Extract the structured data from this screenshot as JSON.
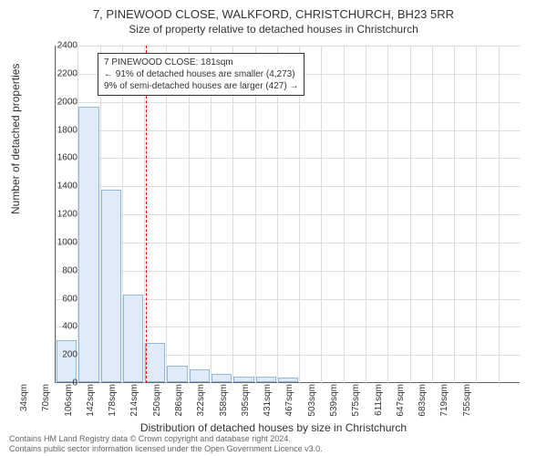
{
  "title_main": "7, PINEWOOD CLOSE, WALKFORD, CHRISTCHURCH, BH23 5RR",
  "title_sub": "Size of property relative to detached houses in Christchurch",
  "y_axis_title": "Number of detached properties",
  "x_axis_title": "Distribution of detached houses by size in Christchurch",
  "chart": {
    "type": "histogram",
    "ylim": [
      0,
      2400
    ],
    "y_ticks": [
      0,
      200,
      400,
      600,
      800,
      1000,
      1200,
      1400,
      1600,
      1800,
      2000,
      2200,
      2400
    ],
    "x_labels": [
      "34sqm",
      "70sqm",
      "106sqm",
      "142sqm",
      "178sqm",
      "214sqm",
      "250sqm",
      "286sqm",
      "322sqm",
      "358sqm",
      "395sqm",
      "431sqm",
      "467sqm",
      "503sqm",
      "539sqm",
      "575sqm",
      "611sqm",
      "647sqm",
      "683sqm",
      "719sqm",
      "755sqm"
    ],
    "values": [
      300,
      1960,
      1370,
      620,
      280,
      120,
      90,
      60,
      40,
      40,
      30,
      0,
      0,
      0,
      0,
      0,
      0,
      0,
      0,
      0,
      0
    ],
    "bar_fill": "#e0ebf7",
    "bar_stroke": "#93b8de",
    "background_color": "#ffffff",
    "grid_color": "#dddddd",
    "axis_color": "#666666"
  },
  "reference_line": {
    "x_value": 181,
    "color": "#ff0000",
    "dash": true
  },
  "annotation": {
    "line1": "7 PINEWOOD CLOSE: 181sqm",
    "line2": "← 91% of detached houses are smaller (4,273)",
    "line3": "9% of semi-detached houses are larger (427) →"
  },
  "footer": {
    "line1": "Contains HM Land Registry data © Crown copyright and database right 2024.",
    "line2": "Contains public sector information licensed under the Open Government Licence v3.0."
  }
}
